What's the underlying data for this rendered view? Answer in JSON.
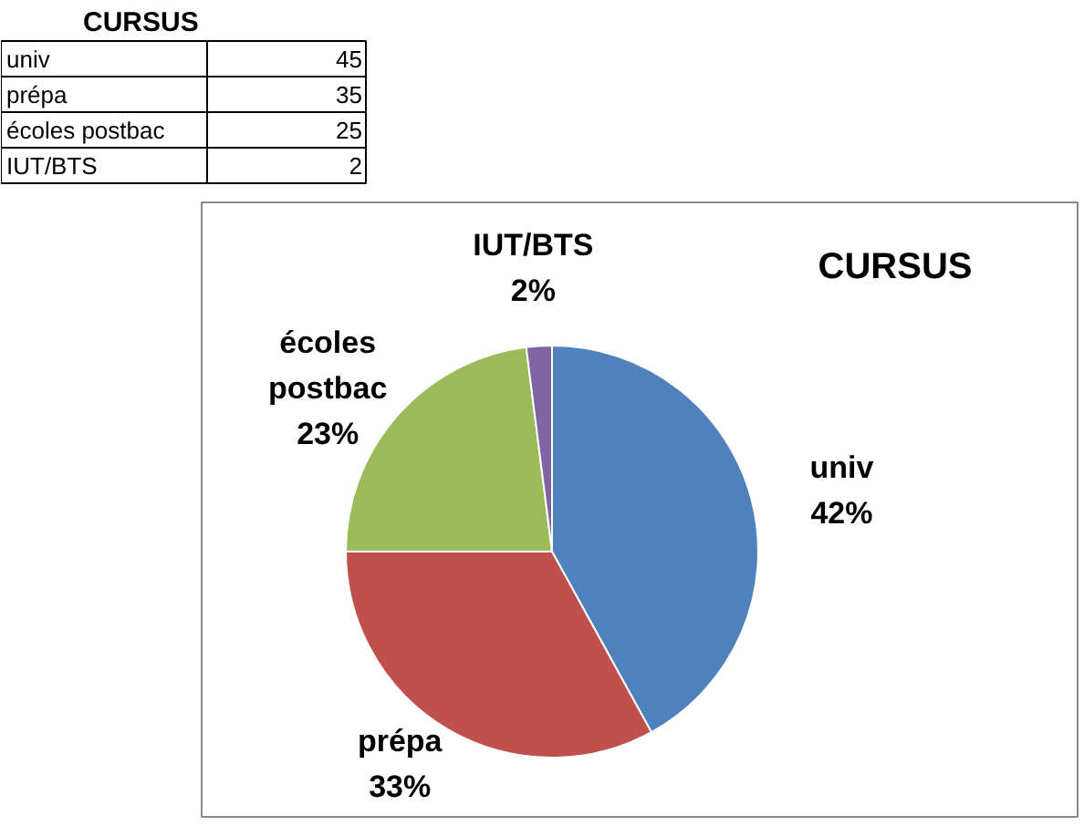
{
  "chart_data": {
    "type": "pie",
    "title": "CURSUS",
    "categories": [
      "univ",
      "prépa",
      "écoles postbac",
      "IUT/BTS"
    ],
    "values": [
      42,
      33,
      23,
      2
    ],
    "colors": [
      "#4f81bd",
      "#c0504d",
      "#9bbb59",
      "#8064a2"
    ],
    "value_labels": [
      "42%",
      "33%",
      "23%",
      "2%"
    ],
    "annotations": [
      "CURSUS",
      "45",
      "35",
      "25",
      "2"
    ]
  }
}
